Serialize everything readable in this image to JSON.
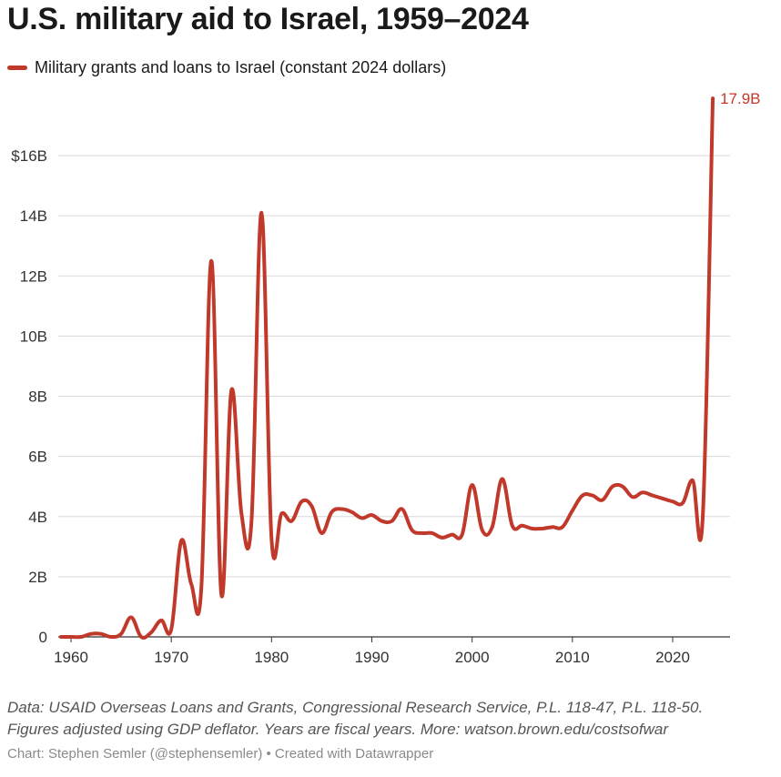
{
  "title": "U.S. military aid to Israel, 1959–2024",
  "legend_label": "Military grants and loans to Israel (constant 2024 dollars)",
  "end_label": "17.9B",
  "note_line1": "Data: USAID Overseas Loans and Grants, Congressional Research Service, P.L. 118-47, P.L. 118-50.",
  "note_line2": "Figures adjusted using GDP deflator. Years are fiscal years. More: watson.brown.edu/costsofwar",
  "credit": "Chart: Stephen Semler (@stephensemler) • Created with Datawrapper",
  "colors": {
    "line": "#c0392b",
    "grid": "#d9d9d9",
    "axis": "#333333"
  },
  "chart_data": {
    "type": "line",
    "title": "U.S. military aid to Israel, 1959–2024",
    "xlabel": "",
    "ylabel": "",
    "xlim": [
      1959,
      2024
    ],
    "ylim": [
      0,
      18
    ],
    "grid": true,
    "legend_position": "top-left",
    "x_ticks": [
      1960,
      1970,
      1980,
      1990,
      2000,
      2010,
      2020
    ],
    "x_tick_labels": [
      "1960",
      "1970",
      "1980",
      "1990",
      "2000",
      "2010",
      "2020"
    ],
    "y_ticks": [
      0,
      2,
      4,
      6,
      8,
      10,
      12,
      14,
      16
    ],
    "y_tick_labels": [
      "0",
      "2B",
      "4B",
      "6B",
      "8B",
      "10B",
      "12B",
      "14B",
      "$16B"
    ],
    "series": [
      {
        "name": "Military grants and loans to Israel (constant 2024 dollars)",
        "x": [
          1959,
          1960,
          1961,
          1962,
          1963,
          1964,
          1965,
          1966,
          1967,
          1968,
          1969,
          1970,
          1971,
          1972,
          1973,
          1974,
          1975,
          1976,
          1977,
          1978,
          1979,
          1980,
          1981,
          1982,
          1983,
          1984,
          1985,
          1986,
          1987,
          1988,
          1989,
          1990,
          1991,
          1992,
          1993,
          1994,
          1995,
          1996,
          1997,
          1998,
          1999,
          2000,
          2001,
          2002,
          2003,
          2004,
          2005,
          2006,
          2007,
          2008,
          2009,
          2010,
          2011,
          2012,
          2013,
          2014,
          2015,
          2016,
          2017,
          2018,
          2019,
          2020,
          2021,
          2022,
          2023,
          2024
        ],
        "y": [
          0,
          0,
          0,
          0.1,
          0.1,
          0,
          0.1,
          0.65,
          0,
          0.15,
          0.55,
          0.25,
          3.2,
          1.75,
          1.65,
          12.5,
          1.4,
          8.2,
          4.1,
          3.85,
          14.1,
          3.25,
          4.1,
          3.85,
          4.5,
          4.35,
          3.45,
          4.15,
          4.25,
          4.15,
          3.95,
          4.05,
          3.85,
          3.85,
          4.25,
          3.55,
          3.45,
          3.45,
          3.3,
          3.4,
          3.4,
          5.05,
          3.55,
          3.65,
          5.25,
          3.7,
          3.7,
          3.6,
          3.6,
          3.65,
          3.65,
          4.2,
          4.7,
          4.7,
          4.55,
          5.0,
          5.0,
          4.65,
          4.8,
          4.7,
          4.6,
          4.5,
          4.45,
          5.2,
          4.0,
          17.9
        ]
      }
    ],
    "annotations": [
      {
        "text": "17.9B",
        "x": 2024,
        "y": 17.9
      }
    ]
  }
}
